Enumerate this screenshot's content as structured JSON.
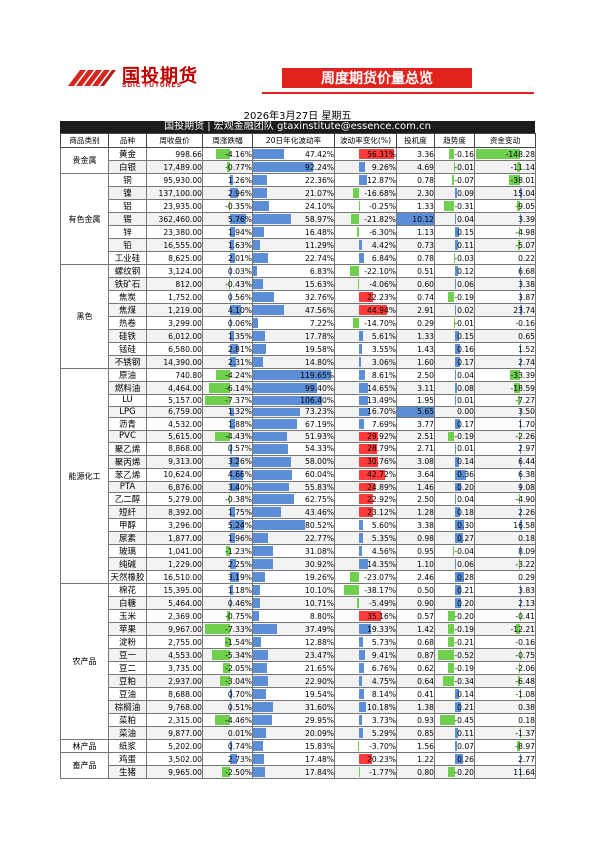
{
  "logo": {
    "name_cn": "国投期货",
    "name_en": "SDIC FUTURES"
  },
  "header": {
    "title": "周度期货价量总览",
    "date": "2026年3月27日 星期五",
    "subtitle": "国投期货 | 宏观金融团队 gtaxinstitute@essence.com.cn"
  },
  "columns": [
    "商品类别",
    "品种",
    "周收盘价",
    "周涨跌幅",
    "20日年化波动率",
    "波动率变化(%)",
    "投机度",
    "趋势度",
    "资金变动"
  ],
  "colors": {
    "bar_positive": "#5b8ed6",
    "bar_negative": "#6fd04e",
    "bar_highlight": "#ff3b3b",
    "banner": "#e0241d"
  },
  "groups": [
    {
      "category": "贵金属",
      "rows": [
        {
          "name": "黄金",
          "close": "998.66",
          "chg": "-4.16%",
          "vol": "47.42%",
          "volchg": "56.31%",
          "spec": "3.36",
          "trend": "-0.16",
          "flow": "-148.28"
        },
        {
          "name": "白银",
          "close": "17,489.00",
          "chg": "-0.77%",
          "vol": "92.24%",
          "volchg": "9.26%",
          "spec": "4.69",
          "trend": "-0.01",
          "flow": "-11.14"
        }
      ]
    },
    {
      "category": "有色金属",
      "rows": [
        {
          "name": "铜",
          "close": "95,930.00",
          "chg": "1.26%",
          "vol": "22.36%",
          "volchg": "12.87%",
          "spec": "0.78",
          "trend": "-0.07",
          "flow": "-38.01"
        },
        {
          "name": "镍",
          "close": "137,100.00",
          "chg": "2.96%",
          "vol": "21.07%",
          "volchg": "-16.68%",
          "spec": "2.30",
          "trend": "0.09",
          "flow": "15.04"
        },
        {
          "name": "铝",
          "close": "23,935.00",
          "chg": "-0.35%",
          "vol": "24.10%",
          "volchg": "-0.25%",
          "spec": "1.33",
          "trend": "-0.31",
          "flow": "-9.05"
        },
        {
          "name": "锡",
          "close": "362,460.00",
          "chg": "5.76%",
          "vol": "58.97%",
          "volchg": "-21.82%",
          "spec": "10.12",
          "trend": "0.04",
          "flow": "3.39"
        },
        {
          "name": "锌",
          "close": "23,380.00",
          "chg": "1.94%",
          "vol": "16.48%",
          "volchg": "-6.30%",
          "spec": "1.13",
          "trend": "0.15",
          "flow": "-4.98"
        },
        {
          "name": "铅",
          "close": "16,555.00",
          "chg": "1.63%",
          "vol": "11.29%",
          "volchg": "4.42%",
          "spec": "0.73",
          "trend": "0.11",
          "flow": "-5.07"
        },
        {
          "name": "工业硅",
          "close": "8,625.00",
          "chg": "2.01%",
          "vol": "22.74%",
          "volchg": "6.84%",
          "spec": "0.78",
          "trend": "-0.03",
          "flow": "0.22"
        }
      ]
    },
    {
      "category": "黑色",
      "rows": [
        {
          "name": "螺纹钢",
          "close": "3,124.00",
          "chg": "0.03%",
          "vol": "6.83%",
          "volchg": "-22.10%",
          "spec": "0.51",
          "trend": "0.12",
          "flow": "6.68"
        },
        {
          "name": "铁矿石",
          "close": "812.00",
          "chg": "-0.43%",
          "vol": "15.63%",
          "volchg": "-4.06%",
          "spec": "0.60",
          "trend": "0.06",
          "flow": "3.38"
        },
        {
          "name": "焦炭",
          "close": "1,752.00",
          "chg": "0.56%",
          "vol": "32.76%",
          "volchg": "22.23%",
          "spec": "0.74",
          "trend": "-0.19",
          "flow": "3.87"
        },
        {
          "name": "焦煤",
          "close": "1,219.00",
          "chg": "4.10%",
          "vol": "47.56%",
          "volchg": "44.94%",
          "spec": "2.91",
          "trend": "0.02",
          "flow": "23.74"
        },
        {
          "name": "热卷",
          "close": "3,299.00",
          "chg": "0.06%",
          "vol": "7.22%",
          "volchg": "-14.70%",
          "spec": "0.29",
          "trend": "-0.01",
          "flow": "-0.16"
        },
        {
          "name": "硅铁",
          "close": "6,012.00",
          "chg": "1.35%",
          "vol": "17.78%",
          "volchg": "5.61%",
          "spec": "1.33",
          "trend": "0.15",
          "flow": "0.65"
        },
        {
          "name": "锰硅",
          "close": "6,580.00",
          "chg": "2.81%",
          "vol": "19.58%",
          "volchg": "3.55%",
          "spec": "1.43",
          "trend": "0.16",
          "flow": "1.52"
        },
        {
          "name": "不锈钢",
          "close": "14,390.00",
          "chg": "2.31%",
          "vol": "14.80%",
          "volchg": "3.06%",
          "spec": "1.60",
          "trend": "0.17",
          "flow": "2.74"
        }
      ]
    },
    {
      "category": "能源化工",
      "rows": [
        {
          "name": "原油",
          "close": "740.80",
          "chg": "-4.24%",
          "vol": "119.65%",
          "volchg": "8.61%",
          "spec": "2.50",
          "trend": "0.04",
          "flow": "-33.39"
        },
        {
          "name": "燃料油",
          "close": "4,464.00",
          "chg": "-6.14%",
          "vol": "99.40%",
          "volchg": "14.65%",
          "spec": "3.11",
          "trend": "0.08",
          "flow": "-18.59"
        },
        {
          "name": "LU",
          "close": "5,157.00",
          "chg": "-7.37%",
          "vol": "106.40%",
          "volchg": "13.49%",
          "spec": "1.95",
          "trend": "0.01",
          "flow": "-7.27"
        },
        {
          "name": "LPG",
          "close": "6,759.00",
          "chg": "1.32%",
          "vol": "73.23%",
          "volchg": "16.70%",
          "spec": "5.65",
          "trend": "0.00",
          "flow": "3.50"
        },
        {
          "name": "沥青",
          "close": "4,532.00",
          "chg": "1.88%",
          "vol": "67.19%",
          "volchg": "7.69%",
          "spec": "3.77",
          "trend": "0.17",
          "flow": "1.70"
        },
        {
          "name": "PVC",
          "close": "5,615.00",
          "chg": "-4.43%",
          "vol": "51.93%",
          "volchg": "29.92%",
          "spec": "2.51",
          "trend": "-0.19",
          "flow": "-2.26"
        },
        {
          "name": "聚乙烯",
          "close": "8,868.00",
          "chg": "0.57%",
          "vol": "54.33%",
          "volchg": "28.79%",
          "spec": "2.71",
          "trend": "0.01",
          "flow": "2.97"
        },
        {
          "name": "聚丙烯",
          "close": "9,313.00",
          "chg": "3.26%",
          "vol": "58.00%",
          "volchg": "30.76%",
          "spec": "3.08",
          "trend": "0.14",
          "flow": "6.44"
        },
        {
          "name": "苯乙烯",
          "close": "10,624.00",
          "chg": "4.66%",
          "vol": "60.04%",
          "volchg": "42.72%",
          "spec": "3.64",
          "trend": "0.36",
          "flow": "6.38"
        },
        {
          "name": "PTA",
          "close": "6,876.00",
          "chg": "3.40%",
          "vol": "55.83%",
          "volchg": "24.89%",
          "spec": "1.46",
          "trend": "0.20",
          "flow": "9.08"
        },
        {
          "name": "乙二醇",
          "close": "5,279.00",
          "chg": "-0.38%",
          "vol": "62.75%",
          "volchg": "22.92%",
          "spec": "2.50",
          "trend": "0.04",
          "flow": "-4.90"
        },
        {
          "name": "短纤",
          "close": "8,392.00",
          "chg": "1.75%",
          "vol": "43.46%",
          "volchg": "23.12%",
          "spec": "1.28",
          "trend": "0.18",
          "flow": "2.26"
        },
        {
          "name": "甲醇",
          "close": "3,296.00",
          "chg": "5.24%",
          "vol": "80.52%",
          "volchg": "5.60%",
          "spec": "3.38",
          "trend": "0.30",
          "flow": "16.58"
        },
        {
          "name": "尿素",
          "close": "1,877.00",
          "chg": "1.96%",
          "vol": "22.77%",
          "volchg": "5.35%",
          "spec": "0.98",
          "trend": "0.27",
          "flow": "0.18"
        },
        {
          "name": "玻璃",
          "close": "1,041.00",
          "chg": "-1.23%",
          "vol": "31.08%",
          "volchg": "4.56%",
          "spec": "0.95",
          "trend": "-0.04",
          "flow": "8.09"
        },
        {
          "name": "纯碱",
          "close": "1,229.00",
          "chg": "2.25%",
          "vol": "30.92%",
          "volchg": "14.35%",
          "spec": "1.10",
          "trend": "0.06",
          "flow": "-3.22"
        },
        {
          "name": "天然橡胶",
          "close": "16,510.00",
          "chg": "3.19%",
          "vol": "19.26%",
          "volchg": "-23.07%",
          "spec": "2.46",
          "trend": "0.28",
          "flow": "0.29"
        }
      ]
    },
    {
      "category": "农产品",
      "rows": [
        {
          "name": "棉花",
          "close": "15,395.00",
          "chg": "1.18%",
          "vol": "10.10%",
          "volchg": "-38.17%",
          "spec": "0.50",
          "trend": "0.21",
          "flow": "3.83"
        },
        {
          "name": "白糖",
          "close": "5,464.00",
          "chg": "0.46%",
          "vol": "10.71%",
          "volchg": "-5.49%",
          "spec": "0.90",
          "trend": "0.20",
          "flow": "2.13"
        },
        {
          "name": "玉米",
          "close": "2,369.00",
          "chg": "-0.75%",
          "vol": "8.80%",
          "volchg": "35.16%",
          "spec": "0.57",
          "trend": "-0.20",
          "flow": "-0.41"
        },
        {
          "name": "苹果",
          "close": "9,967.00",
          "chg": "-7.33%",
          "vol": "37.49%",
          "volchg": "19.33%",
          "spec": "1.42",
          "trend": "-0.19",
          "flow": "-12.21"
        },
        {
          "name": "淀粉",
          "close": "2,755.00",
          "chg": "-1.54%",
          "vol": "12.88%",
          "volchg": "5.73%",
          "spec": "0.68",
          "trend": "-0.21",
          "flow": "-0.16"
        },
        {
          "name": "豆一",
          "close": "4,553.00",
          "chg": "-5.34%",
          "vol": "23.47%",
          "volchg": "9.41%",
          "spec": "0.87",
          "trend": "-0.52",
          "flow": "-0.75"
        },
        {
          "name": "豆二",
          "close": "3,735.00",
          "chg": "-2.05%",
          "vol": "21.65%",
          "volchg": "6.76%",
          "spec": "0.62",
          "trend": "-0.19",
          "flow": "-2.06"
        },
        {
          "name": "豆粕",
          "close": "2,937.00",
          "chg": "-3.04%",
          "vol": "22.90%",
          "volchg": "4.75%",
          "spec": "0.64",
          "trend": "-0.34",
          "flow": "-6.48"
        },
        {
          "name": "豆油",
          "close": "8,688.00",
          "chg": "0.70%",
          "vol": "19.54%",
          "volchg": "8.14%",
          "spec": "0.41",
          "trend": "0.14",
          "flow": "-1.08"
        },
        {
          "name": "棕榈油",
          "close": "9,768.00",
          "chg": "0.51%",
          "vol": "31.60%",
          "volchg": "10.18%",
          "spec": "1.38",
          "trend": "0.21",
          "flow": "0.38"
        },
        {
          "name": "菜粕",
          "close": "2,315.00",
          "chg": "-4.46%",
          "vol": "29.95%",
          "volchg": "3.73%",
          "spec": "0.93",
          "trend": "-0.45",
          "flow": "0.18"
        },
        {
          "name": "菜油",
          "close": "9,877.00",
          "chg": "0.01%",
          "vol": "20.09%",
          "volchg": "5.29%",
          "spec": "0.85",
          "trend": "0.11",
          "flow": "-1.37"
        }
      ]
    },
    {
      "category": "林产品",
      "rows": [
        {
          "name": "纸浆",
          "close": "5,202.00",
          "chg": "0.74%",
          "vol": "15.83%",
          "volchg": "-3.70%",
          "spec": "1.56",
          "trend": "0.07",
          "flow": "-8.97"
        }
      ]
    },
    {
      "category": "畜产品",
      "rows": [
        {
          "name": "鸡蛋",
          "close": "3,502.00",
          "chg": "2.73%",
          "vol": "17.48%",
          "volchg": "20.23%",
          "spec": "1.22",
          "trend": "0.26",
          "flow": "2.77"
        },
        {
          "name": "生猪",
          "close": "9,965.00",
          "chg": "-2.50%",
          "vol": "17.84%",
          "volchg": "-1.77%",
          "spec": "0.80",
          "trend": "-0.20",
          "flow": "11.64"
        }
      ]
    }
  ]
}
